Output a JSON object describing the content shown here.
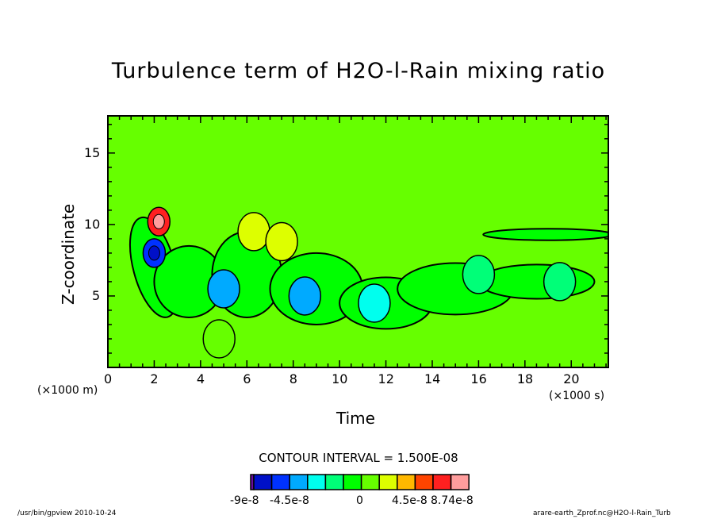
{
  "chart_data": {
    "type": "heatmap",
    "title": "Turbulence term of H2O-l-Rain mixing ratio",
    "xlabel": "Time",
    "ylabel": "Z-coordinate",
    "x_units": "(×1000 s)",
    "y_units": "(×1000 m)",
    "xlim": [
      0,
      21.6
    ],
    "ylim": [
      0,
      17.6
    ],
    "x_ticks": [
      "0",
      "2",
      "4",
      "6",
      "8",
      "10",
      "12",
      "14",
      "16",
      "18",
      "20"
    ],
    "x_tick_values": [
      0,
      2,
      4,
      6,
      8,
      10,
      12,
      14,
      16,
      18,
      20
    ],
    "y_ticks": [
      "5",
      "10",
      "15"
    ],
    "y_tick_values": [
      5,
      10,
      15
    ],
    "background_value": 0,
    "contour_interval": "CONTOUR INTERVAL = 1.500E-08",
    "colorbar": {
      "colors": [
        "#6a0ca0",
        "#0010c8",
        "#0032ff",
        "#00aaff",
        "#00ffee",
        "#00ff78",
        "#00ff00",
        "#66ff00",
        "#ddff00",
        "#ffb800",
        "#ff4400",
        "#ff2020",
        "#ff9d9d"
      ],
      "labels": [
        "-9e-8",
        "-4.5e-8",
        "0",
        "4.5e-8",
        "8.74e-8"
      ],
      "levels": [
        -9e-08,
        -7.5e-08,
        -6e-08,
        -4.5e-08,
        -3e-08,
        -1.5e-08,
        0,
        1.5e-08,
        3e-08,
        4.5e-08,
        6e-08,
        7.5e-08,
        8.74e-08
      ]
    },
    "features": [
      {
        "name": "positive-peak",
        "x": 2.2,
        "y": 10.2,
        "value": 8e-08
      },
      {
        "name": "negative-core",
        "x": 2.0,
        "y": 8.0,
        "value": -6e-08
      },
      {
        "name": "negative-band",
        "x": 5.0,
        "y": 5.5,
        "value": -4e-08
      },
      {
        "name": "negative-band-2",
        "x": 8.5,
        "y": 5.0,
        "value": -3.5e-08
      },
      {
        "name": "positive-lobe",
        "x": 6.3,
        "y": 9.5,
        "value": 4e-08
      },
      {
        "name": "positive-lobe-2",
        "x": 7.5,
        "y": 8.8,
        "value": 3.5e-08
      },
      {
        "name": "positive-patch",
        "x": 4.8,
        "y": 2.0,
        "value": 2e-08
      },
      {
        "name": "weak-negative",
        "x": 11.5,
        "y": 4.5,
        "value": -2e-08
      },
      {
        "name": "weak-negative-2",
        "x": 16.0,
        "y": 6.5,
        "value": -1e-08
      },
      {
        "name": "weak-negative-3",
        "x": 19.5,
        "y": 6.0,
        "value": -1e-08
      }
    ]
  },
  "footer": {
    "left": "/usr/bin/gpview   2010-10-24",
    "right": "arare-earth_Zprof.nc@H2O-l-Rain_Turb"
  }
}
